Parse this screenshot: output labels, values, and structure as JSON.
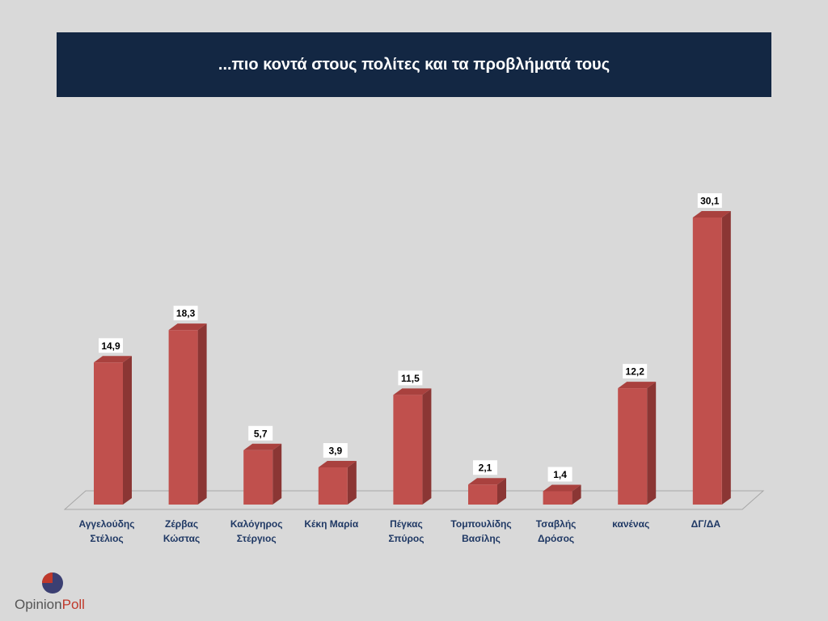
{
  "header": {
    "title": "...πιο κοντά στους πολίτες και τα προβλήματά τους"
  },
  "logo": {
    "part1": "Opinion",
    "part2": "Poll"
  },
  "colors": {
    "bar_front": "#c0504d",
    "bar_side": "#8b3634",
    "bar_top": "#a9413e",
    "title_bg": "#132743",
    "label_text": "#1f3864"
  },
  "chart_data": {
    "type": "bar",
    "title": "...πιο κοντά στους πολίτες και τα προβλήματά τους",
    "xlabel": "",
    "ylabel": "",
    "ylim": [
      0,
      30.1
    ],
    "grid": false,
    "legend": "none",
    "categories": [
      [
        "Αγγελούδης",
        "Στέλιος"
      ],
      [
        "Ζέρβας",
        "Κώστας"
      ],
      [
        "Καλόγηρος",
        "Στέργιος"
      ],
      [
        "Κέκη Μαρία"
      ],
      [
        "Πέγκας",
        "Σπύρος"
      ],
      [
        "Τομπουλίδης",
        "Βασίλης"
      ],
      [
        "Τσαβλής",
        "Δρόσος"
      ],
      [
        "κανένας"
      ],
      [
        "ΔΓ/ΔΑ"
      ]
    ],
    "values": [
      14.9,
      18.3,
      5.7,
      3.9,
      11.5,
      2.1,
      1.4,
      12.2,
      30.1
    ],
    "value_labels": [
      "14,9",
      "18,3",
      "5,7",
      "3,9",
      "11,5",
      "2,1",
      "1,4",
      "12,2",
      "30,1"
    ]
  }
}
